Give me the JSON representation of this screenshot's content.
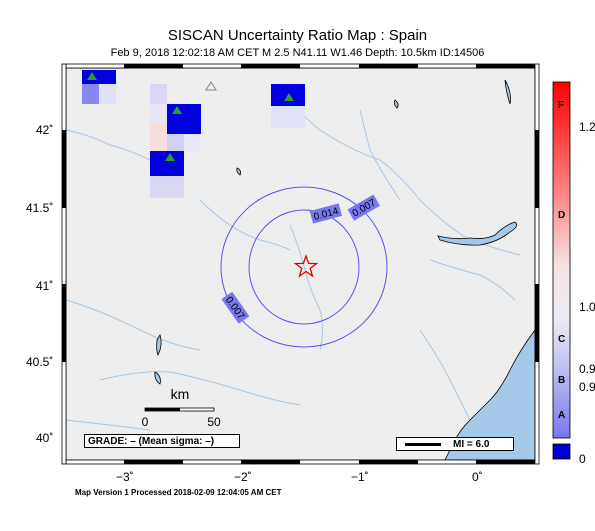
{
  "map": {
    "title": "SISCAN Uncertainty Ratio Map : Spain",
    "subtitle": "Feb  9, 2018 12:02:18 AM CET    M 2.5    N41.11 W1.46    Depth: 10.5km    ID:14506",
    "footer": "Map Version 1 Processed 2018-02-09 12:04:05 AM CET",
    "lat_labels": [
      "42˚",
      "41.5˚",
      "41˚",
      "40.5˚",
      "40˚"
    ],
    "lon_labels": [
      "−3˚",
      "−2˚",
      "−1˚",
      "0˚"
    ],
    "contour_labels": [
      "0.014",
      "0.007",
      "0.007"
    ],
    "scale": {
      "unit": "km",
      "ticks": [
        "0",
        "50"
      ]
    },
    "grade_text": "GRADE: – (Mean sigma: –)",
    "mi_text": "MI = 6.0",
    "epicenter": {
      "lat": 41.11,
      "lon": -1.46
    },
    "colorbar": {
      "letters": [
        "F",
        "D",
        "C",
        "B",
        "A"
      ],
      "values": [
        "1.2",
        "1.0",
        "0.9",
        "0.9",
        "0"
      ]
    },
    "colors": {
      "land": "#eeeeee",
      "water": "#a4c8e8",
      "contour": "#5555ee",
      "epicenter": "#e00000",
      "station": "#2f9a2f"
    }
  }
}
